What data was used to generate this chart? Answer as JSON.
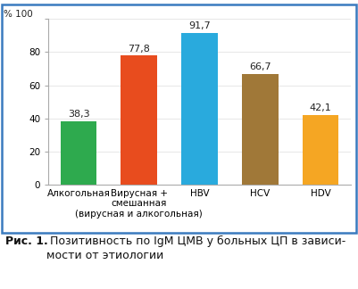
{
  "categories": [
    "Алкогольная",
    "Вирусная +\nсмешанная\n(вирусная и алкогольная)",
    "HBV",
    "HCV",
    "HDV"
  ],
  "values": [
    38.3,
    77.8,
    91.7,
    66.7,
    42.1
  ],
  "bar_colors": [
    "#2eaa4e",
    "#e84c1e",
    "#29aadd",
    "#a07838",
    "#f5a623"
  ],
  "ylim": [
    0,
    100
  ],
  "yticks": [
    0,
    20,
    40,
    60,
    80,
    100
  ],
  "bar_width": 0.6,
  "background_color": "#ffffff",
  "plot_bg_color": "#ffffff",
  "border_color": "#3a7bbf",
  "caption_bold": "Рис. 1.",
  "caption_text": " Позитивность по IgM ЦМВ у больных ЦП в зависи-\nмости от этиологии",
  "value_labels": [
    "38,3",
    "77,8",
    "91,7",
    "66,7",
    "42,1"
  ],
  "label_fontsize": 8.0,
  "tick_fontsize": 7.5,
  "caption_fontsize": 9.0,
  "ylabel_text": "% 100"
}
